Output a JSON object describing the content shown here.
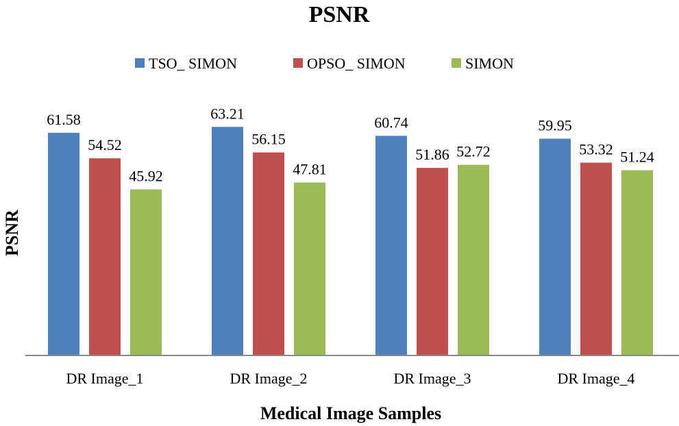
{
  "chart_data": {
    "type": "bar",
    "title": "PSNR",
    "xlabel": "Medical Image Samples",
    "ylabel": "PSNR",
    "categories": [
      "DR Image_1",
      "DR Image_2",
      "DR Image_3",
      "DR Image_4"
    ],
    "series": [
      {
        "name": "TSO_ SIMON",
        "color": "#4F81BD",
        "values": [
          61.58,
          63.21,
          60.74,
          59.95
        ]
      },
      {
        "name": "OPSO_ SIMON",
        "color": "#C0504D",
        "values": [
          54.52,
          56.15,
          51.86,
          53.32
        ]
      },
      {
        "name": "SIMON",
        "color": "#9BBB59",
        "values": [
          45.92,
          47.81,
          52.72,
          51.24
        ]
      }
    ],
    "ylim": [
      0,
      75
    ],
    "grid": false,
    "legend_position": "top",
    "data_labels": true
  }
}
